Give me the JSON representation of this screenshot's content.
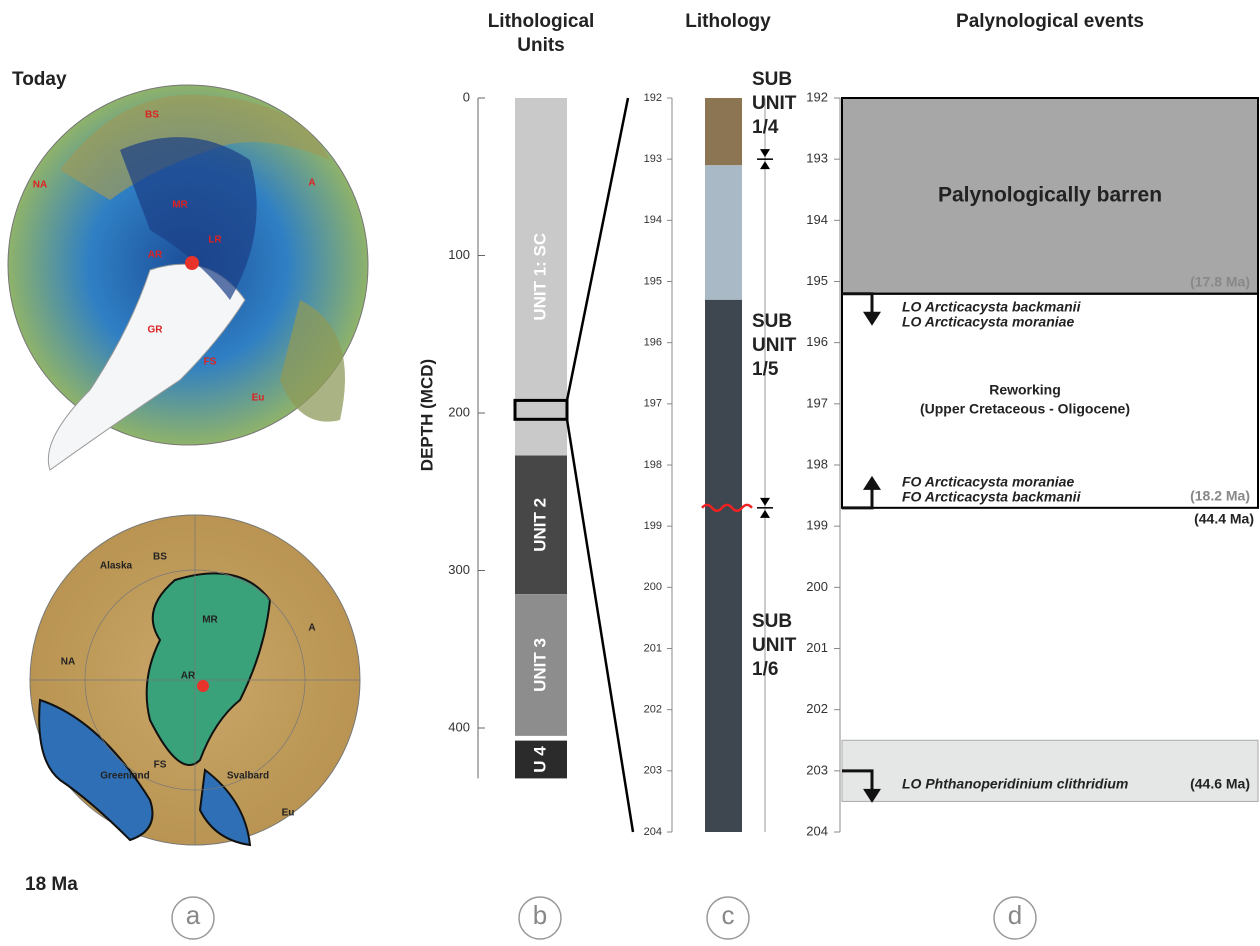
{
  "panel_a": {
    "top_label": "Today",
    "bottom_label": "18 Ma",
    "letter": "a",
    "map_today_labels": [
      "BS",
      "NA",
      "MR",
      "A",
      "AR",
      "LR",
      "GR",
      "FS",
      "Eu"
    ],
    "map_18ma_labels": [
      "Alaska",
      "BS",
      "NA",
      "A",
      "MR",
      "AR",
      "Greenland",
      "Svalbard",
      "FS",
      "Eu"
    ]
  },
  "panel_b": {
    "title": [
      "Lithological",
      "Units"
    ],
    "axis_label": "DEPTH (MCD)",
    "ticks": [
      0,
      100,
      200,
      300,
      400
    ],
    "units": [
      {
        "label": "UNIT 1: SC",
        "top": 0,
        "bottom": 227,
        "color": "#c9c9c9"
      },
      {
        "label": "UNIT 2",
        "top": 227,
        "bottom": 315,
        "color": "#474747"
      },
      {
        "label": "UNIT 3",
        "top": 315,
        "bottom": 405,
        "color": "#8d8d8d"
      },
      {
        "label": "U 4",
        "top": 408,
        "bottom": 432,
        "color": "#2b2b2b"
      }
    ],
    "zoom": [
      192,
      204
    ],
    "letter": "b"
  },
  "panel_c": {
    "title": "Lithology",
    "ticks": [
      192,
      193,
      194,
      195,
      196,
      197,
      198,
      199,
      200,
      201,
      202,
      203,
      204
    ],
    "layers": [
      {
        "top": 192,
        "bottom": 193.1,
        "color": "#8b7552"
      },
      {
        "top": 193.1,
        "bottom": 195.3,
        "color": "#aab9c6"
      },
      {
        "top": 195.3,
        "bottom": 204,
        "color": "#3e4650"
      }
    ],
    "disconformity": 198.7,
    "boundaries": [
      193,
      198.7
    ],
    "subunits": [
      [
        "SUB",
        "UNIT",
        "1/4"
      ],
      [
        "SUB",
        "UNIT",
        "1/5"
      ],
      [
        "SUB",
        "UNIT",
        "1/6"
      ]
    ],
    "letter": "c"
  },
  "panel_d": {
    "title": "Palynological events",
    "ticks": [
      192,
      193,
      194,
      195,
      196,
      197,
      198,
      199,
      200,
      201,
      202,
      203,
      204
    ],
    "barren": {
      "label": "Palynologically barren",
      "top": 192,
      "bottom": 195.2
    },
    "reworking": {
      "lines": [
        "Reworking",
        "(Upper Cretaceous - Oligocene)"
      ],
      "top": 195.2,
      "bottom": 198.7
    },
    "highlight": [
      202.5,
      203.5
    ],
    "events": [
      {
        "lines": [
          "LO Arcticacysta backmanii",
          "LO Arcticacysta moraniae"
        ],
        "age": "(17.8 Ma)",
        "depth": 195.2,
        "direction": "down"
      },
      {
        "lines": [
          "FO Arcticacysta moraniae",
          "FO Arcticacysta backmanii"
        ],
        "age": "(18.2 Ma)",
        "age_below": "(44.4 Ma)",
        "depth": 198.7,
        "direction": "up"
      },
      {
        "lines": [
          "LO Phthanoperidinium clithridium"
        ],
        "age": "(44.6 Ma)",
        "depth": 203,
        "direction": "down"
      }
    ],
    "letter": "d"
  }
}
